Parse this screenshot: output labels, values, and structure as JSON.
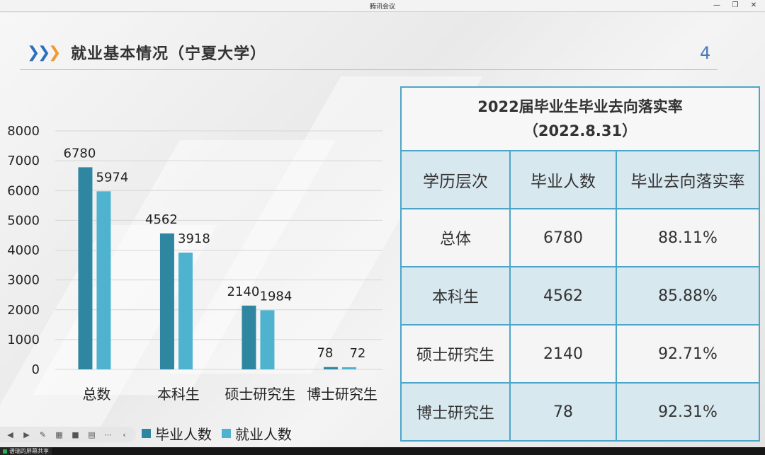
{
  "window": {
    "title": "腾讯会议"
  },
  "slide": {
    "title": "就业基本情况（宁夏大学）",
    "page_number": "4"
  },
  "legend": [
    "毕业人数",
    "就业人数"
  ],
  "chart_data": {
    "type": "bar",
    "categories": [
      "总数",
      "本科生",
      "硕士研究生",
      "博士研究生"
    ],
    "series": [
      {
        "name": "毕业人数",
        "values": [
          6780,
          4562,
          2140,
          78
        ],
        "color": "#2f86a0"
      },
      {
        "name": "就业人数",
        "values": [
          5974,
          3918,
          1984,
          72
        ],
        "color": "#4fb3cf"
      }
    ],
    "yticks": [
      "0",
      "1000",
      "2000",
      "3000",
      "4000",
      "5000",
      "6000",
      "7000",
      "8000"
    ],
    "ylim": [
      0,
      8000
    ],
    "grid": true
  },
  "table": {
    "title_line1": "2022届毕业生毕业去向落实率",
    "title_line2": "（2022.8.31）",
    "headers": [
      "学历层次",
      "毕业人数",
      "毕业去向落实率"
    ],
    "rows": [
      [
        "总体",
        "6780",
        "88.11%"
      ],
      [
        "本科生",
        "4562",
        "85.88%"
      ],
      [
        "硕士研究生",
        "2140",
        "92.71%"
      ],
      [
        "博士研究生",
        "78",
        "92.31%"
      ]
    ]
  },
  "taskbar": {
    "item": "谱瑞的屏幕共享"
  },
  "colors": {
    "chevron_blue": "#2d6fbf",
    "chevron_orange": "#f29a2e",
    "table_border": "#4da6c9"
  }
}
